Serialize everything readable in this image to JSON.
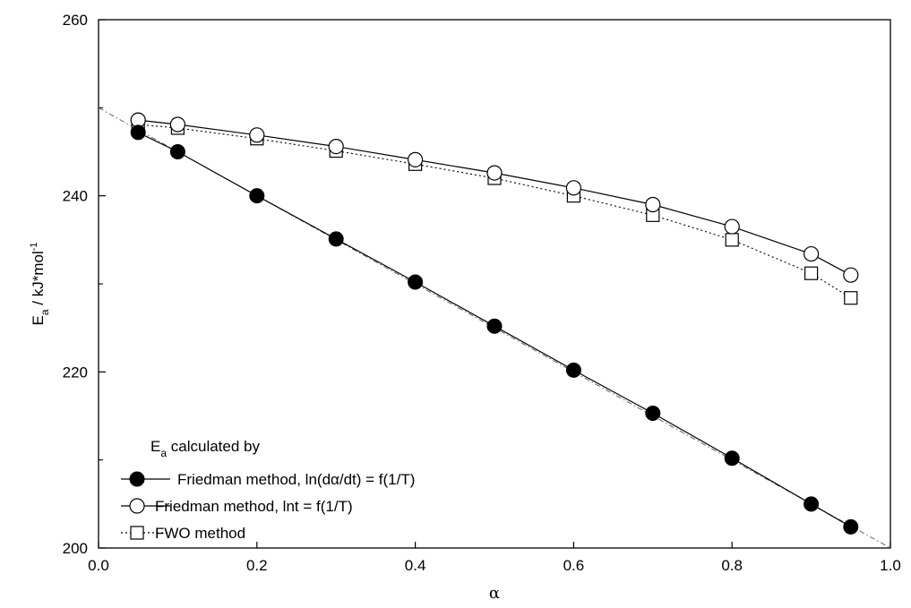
{
  "chart_data": {
    "type": "line",
    "xlabel": "α",
    "ylabel": {
      "main": "E",
      "sub": "a",
      "sep": "/",
      "unit": "kJ*mol",
      "sup": "-1"
    },
    "xlim": [
      0.0,
      1.0
    ],
    "ylim": [
      200,
      260
    ],
    "x_ticks": [
      0.0,
      0.2,
      0.4,
      0.6,
      0.8,
      1.0
    ],
    "x_tick_labels": [
      "0.0",
      "0.2",
      "0.4",
      "0.6",
      "0.8",
      "1.0"
    ],
    "y_ticks": [
      200,
      220,
      240,
      260
    ],
    "y_tick_labels": [
      "200",
      "220",
      "240",
      "260"
    ],
    "y_minor_ticks": [
      210,
      230,
      250
    ],
    "grid": false,
    "legend": {
      "position": "bottom-left",
      "title_main": "E",
      "title_sub": "a",
      "title_rest": " calculated by",
      "labels": [
        "Friedman method,  ln(dα/dt) =  f(1/T)",
        "Friedman method,  lnt =  f(1/T)",
        "FWO method"
      ]
    },
    "series": [
      {
        "name": "Friedman method,  ln(dα/dt) =  f(1/T)",
        "marker": "filled-circle",
        "line": "solid",
        "color": "#000000",
        "x": [
          0.05,
          0.1,
          0.2,
          0.3,
          0.4,
          0.5,
          0.6,
          0.7,
          0.8,
          0.9,
          0.95
        ],
        "y": [
          247.2,
          245.0,
          240.0,
          235.1,
          230.2,
          225.2,
          220.2,
          215.3,
          210.2,
          205.0,
          202.4
        ]
      },
      {
        "name": "Friedman method,  lnt =  f(1/T)",
        "marker": "open-circle",
        "line": "solid",
        "color": "#000000",
        "x": [
          0.05,
          0.1,
          0.2,
          0.3,
          0.4,
          0.5,
          0.6,
          0.7,
          0.8,
          0.9,
          0.95
        ],
        "y": [
          248.6,
          248.1,
          246.9,
          245.6,
          244.1,
          242.6,
          240.9,
          239.0,
          236.5,
          233.4,
          231.0
        ]
      },
      {
        "name": "FWO method",
        "marker": "open-square",
        "line": "dotted",
        "color": "#000000",
        "x": [
          0.05,
          0.1,
          0.2,
          0.3,
          0.4,
          0.5,
          0.6,
          0.7,
          0.8,
          0.9,
          0.95
        ],
        "y": [
          248.1,
          247.7,
          246.5,
          245.1,
          243.6,
          242.0,
          240.0,
          237.8,
          235.0,
          231.2,
          228.4
        ]
      }
    ],
    "fit_line": {
      "style": "dash-dot",
      "x": [
        0.0,
        1.0
      ],
      "y": [
        250.0,
        200.0
      ]
    }
  }
}
